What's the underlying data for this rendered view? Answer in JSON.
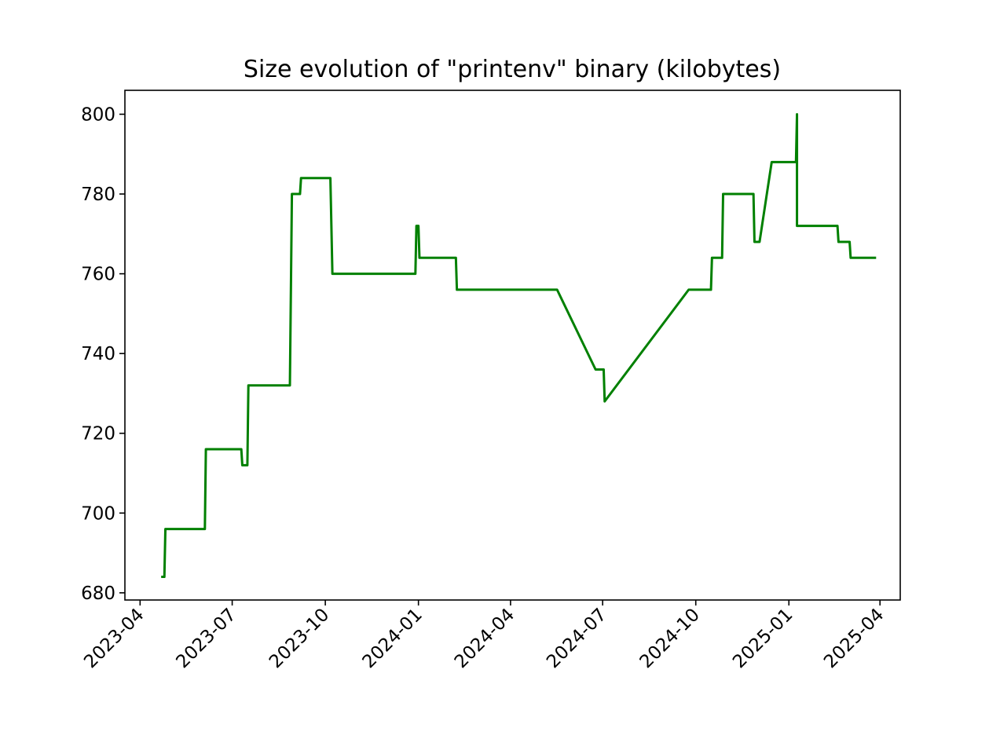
{
  "chart_data": {
    "type": "line",
    "title": "Size evolution of \"printenv\" binary (kilobytes)",
    "xlabel": "",
    "ylabel": "",
    "x_axis_kind": "date",
    "xlim": [
      "2023-03-17",
      "2025-04-21"
    ],
    "ylim": [
      678.2,
      806
    ],
    "x_ticks": [
      "2023-04",
      "2023-07",
      "2023-10",
      "2024-01",
      "2024-04",
      "2024-07",
      "2024-10",
      "2025-01",
      "2025-04"
    ],
    "y_ticks": [
      680,
      700,
      720,
      740,
      760,
      780,
      800
    ],
    "grid": false,
    "legend": "none",
    "series": [
      {
        "color": "#008000",
        "points": [
          [
            "2023-04-23",
            684
          ],
          [
            "2023-04-25",
            684
          ],
          [
            "2023-04-26",
            696
          ],
          [
            "2023-06-04",
            696
          ],
          [
            "2023-06-05",
            716
          ],
          [
            "2023-07-10",
            716
          ],
          [
            "2023-07-11",
            712
          ],
          [
            "2023-07-16",
            712
          ],
          [
            "2023-07-17",
            732
          ],
          [
            "2023-08-27",
            732
          ],
          [
            "2023-08-29",
            780
          ],
          [
            "2023-09-06",
            780
          ],
          [
            "2023-09-07",
            784
          ],
          [
            "2023-10-06",
            784
          ],
          [
            "2023-10-08",
            760
          ],
          [
            "2023-12-29",
            760
          ],
          [
            "2023-12-30",
            772
          ],
          [
            "2024-01-01",
            772
          ],
          [
            "2024-01-02",
            764
          ],
          [
            "2024-02-07",
            764
          ],
          [
            "2024-02-08",
            756
          ],
          [
            "2024-05-17",
            756
          ],
          [
            "2024-06-24",
            736
          ],
          [
            "2024-07-02",
            736
          ],
          [
            "2024-07-03",
            728
          ],
          [
            "2024-09-24",
            756
          ],
          [
            "2024-10-16",
            756
          ],
          [
            "2024-10-17",
            764
          ],
          [
            "2024-10-27",
            764
          ],
          [
            "2024-10-28",
            780
          ],
          [
            "2024-11-27",
            780
          ],
          [
            "2024-11-28",
            768
          ],
          [
            "2024-12-03",
            768
          ],
          [
            "2024-12-15",
            788
          ],
          [
            "2025-01-08",
            788
          ],
          [
            "2025-01-09",
            800
          ],
          [
            "2025-01-09",
            772
          ],
          [
            "2025-02-18",
            772
          ],
          [
            "2025-02-19",
            768
          ],
          [
            "2025-03-02",
            768
          ],
          [
            "2025-03-03",
            764
          ],
          [
            "2025-03-27",
            764
          ]
        ]
      }
    ]
  }
}
